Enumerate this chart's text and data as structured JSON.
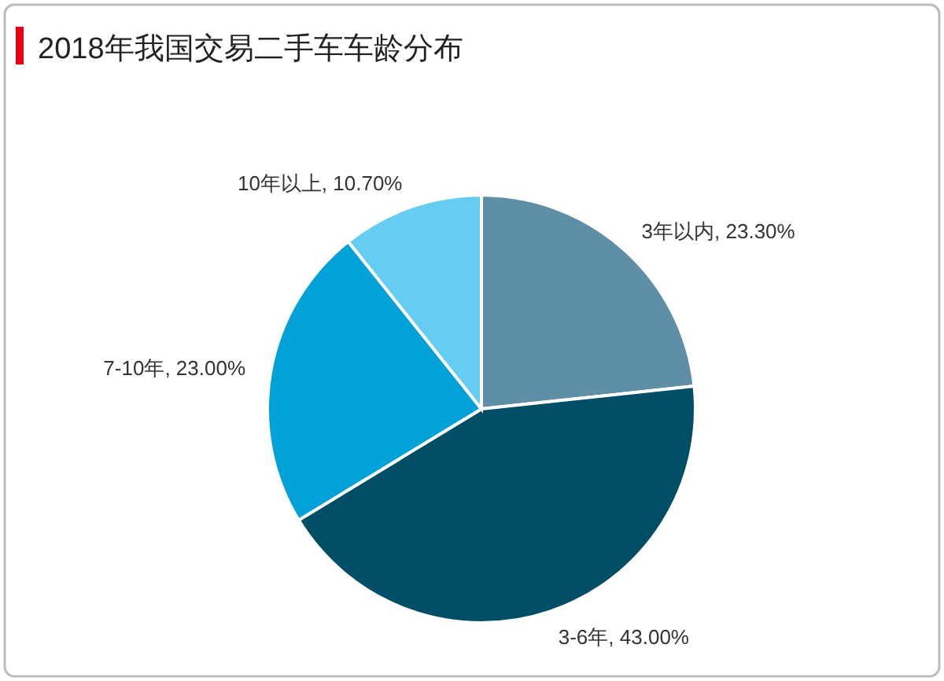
{
  "chart_data": {
    "type": "pie",
    "title": "2018年我国交易二手车车龄分布",
    "categories": [
      "3年以内",
      "3-6年",
      "7-10年",
      "10年以上"
    ],
    "values": [
      23.3,
      43.0,
      23.0,
      10.7
    ],
    "value_labels": [
      "23.30%",
      "43.00%",
      "23.00%",
      "10.70%"
    ],
    "colors": [
      "#5e8fa7",
      "#004e66",
      "#00a0d9",
      "#66cdf2"
    ]
  }
}
